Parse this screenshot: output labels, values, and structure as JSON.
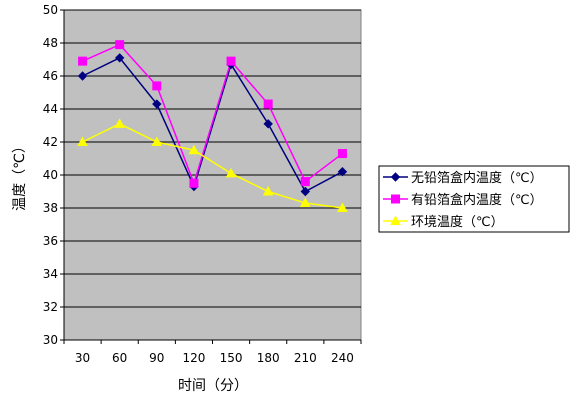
{
  "chart_data": {
    "type": "line",
    "title": "",
    "xlabel": "时间（分）",
    "ylabel": "温度（℃）",
    "x": [
      30,
      60,
      90,
      120,
      150,
      180,
      210,
      240
    ],
    "x_tick_labels": [
      "30",
      "60",
      "90",
      "120",
      "150",
      "180",
      "210",
      "240"
    ],
    "ylim": [
      30,
      50
    ],
    "y_ticks": [
      30,
      32,
      34,
      36,
      38,
      40,
      42,
      44,
      46,
      48,
      50
    ],
    "grid": "horizontal",
    "plot_background": "#c0c0c0",
    "legend_position": "right",
    "series": [
      {
        "name": "无铅箔盒内温度（℃）",
        "color": "#000080",
        "marker": "diamond",
        "values": [
          46.0,
          47.1,
          44.3,
          39.3,
          46.7,
          43.1,
          39.0,
          40.2
        ]
      },
      {
        "name": "有铅箔盒内温度（℃）",
        "color": "#ff00ff",
        "marker": "square",
        "values": [
          46.9,
          47.9,
          45.4,
          39.5,
          46.9,
          44.3,
          39.6,
          41.3
        ]
      },
      {
        "name": "环境温度（℃）",
        "color": "#ffff00",
        "marker": "triangle",
        "values": [
          42.0,
          43.1,
          42.0,
          41.5,
          40.1,
          39.0,
          38.3,
          38.0
        ]
      }
    ]
  }
}
